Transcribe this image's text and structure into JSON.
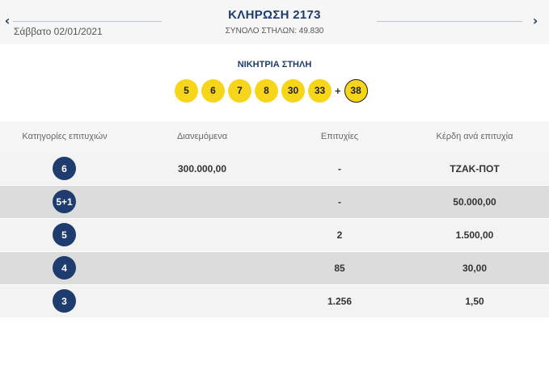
{
  "header": {
    "draw_title": "ΚΛΗΡΩΣΗ 2173",
    "total_columns": "ΣΥΝΟΛΟ ΣΤΗΛΩΝ: 49.830",
    "date": "Σάββατο 02/01/2021",
    "prev_icon": "chevron-left-icon",
    "next_icon": "chevron-right-icon"
  },
  "winning": {
    "label": "ΝΙΚΗΤΡΙΑ ΣΤΗΛΗ",
    "numbers": [
      "5",
      "6",
      "7",
      "8",
      "30",
      "33"
    ],
    "plus": "+",
    "joker": "38"
  },
  "table": {
    "headers": [
      "Κατηγορίες επιτυχιών",
      "Διανεμόμενα",
      "Επιτυχίες",
      "Κέρδη ανά επιτυχία"
    ],
    "rows": [
      {
        "category": "6",
        "distributed": "300.000,00",
        "winners": "-",
        "prize": "ΤΖΑΚ-ΠΟΤ"
      },
      {
        "category": "5+1",
        "distributed": "",
        "winners": "-",
        "prize": "50.000,00"
      },
      {
        "category": "5",
        "distributed": "",
        "winners": "2",
        "prize": "1.500,00"
      },
      {
        "category": "4",
        "distributed": "",
        "winners": "85",
        "prize": "30,00"
      },
      {
        "category": "3",
        "distributed": "",
        "winners": "1.256",
        "prize": "1,50"
      }
    ]
  },
  "colors": {
    "brand_navy": "#1f3c6e",
    "ball_yellow": "#f7d51b"
  }
}
